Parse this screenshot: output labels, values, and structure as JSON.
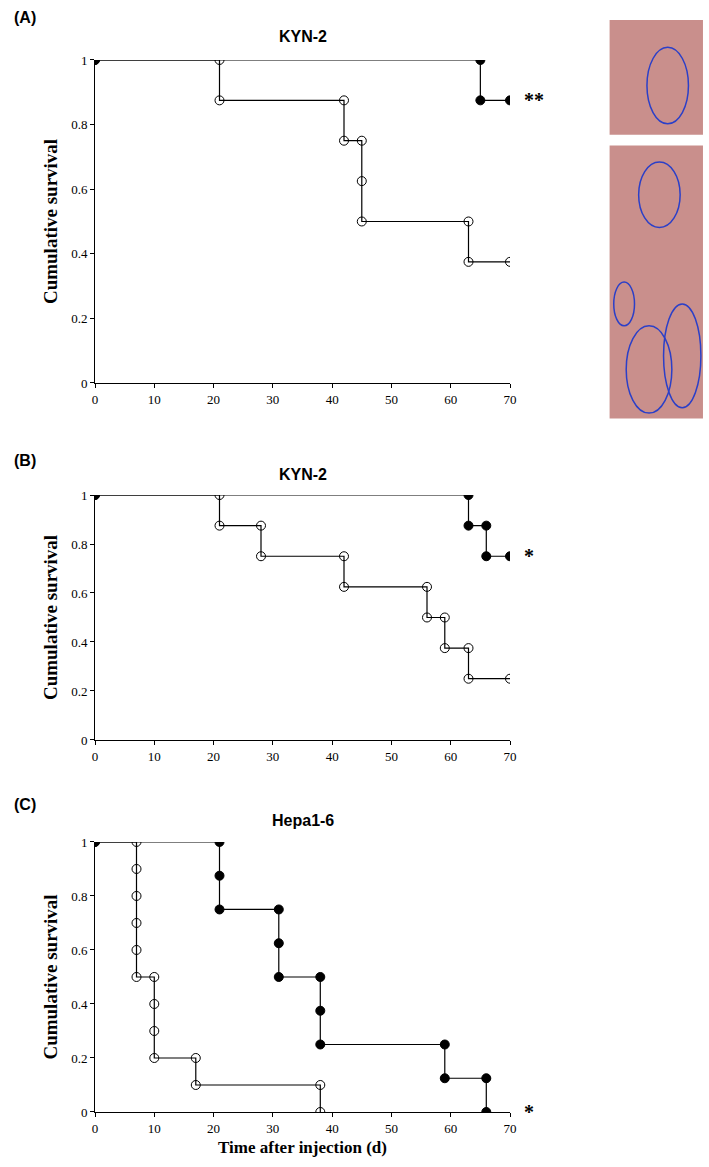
{
  "chart_data": [
    {
      "type": "line",
      "label": "(A)",
      "title": "KYN-2",
      "ylabel": "Cumulative survival",
      "xlim": [
        0,
        70
      ],
      "xticks": [
        0,
        10,
        20,
        30,
        40,
        50,
        60,
        70
      ],
      "ylim": [
        0,
        1
      ],
      "yticks": [
        0,
        0.2,
        0.4,
        0.6,
        0.8,
        1
      ],
      "annotation": "**",
      "series": [
        {
          "marker": "filled",
          "color": "#000000",
          "x": [
            0,
            65,
            65,
            70
          ],
          "values": [
            1,
            1,
            0.875,
            0.875
          ]
        },
        {
          "marker": "open",
          "color": "#000000",
          "x": [
            0,
            21,
            21,
            42,
            42,
            45,
            45,
            45,
            63,
            63,
            70
          ],
          "values": [
            1,
            1,
            0.875,
            0.875,
            0.75,
            0.75,
            0.625,
            0.5,
            0.5,
            0.375,
            0.375
          ]
        }
      ]
    },
    {
      "type": "line",
      "label": "(B)",
      "title": "KYN-2",
      "ylabel": "Cumulative survival",
      "xlim": [
        0,
        70
      ],
      "xticks": [
        0,
        10,
        20,
        30,
        40,
        50,
        60,
        70
      ],
      "ylim": [
        0,
        1
      ],
      "yticks": [
        0,
        0.2,
        0.4,
        0.6,
        0.8,
        1
      ],
      "annotation": "*",
      "series": [
        {
          "marker": "filled",
          "color": "#000000",
          "x": [
            0,
            63,
            63,
            66,
            66,
            70
          ],
          "values": [
            1,
            1,
            0.875,
            0.875,
            0.75,
            0.75
          ]
        },
        {
          "marker": "open",
          "color": "#000000",
          "x": [
            0,
            21,
            21,
            28,
            28,
            42,
            42,
            56,
            56,
            59,
            59,
            63,
            63,
            70
          ],
          "values": [
            1,
            1,
            0.875,
            0.875,
            0.75,
            0.75,
            0.625,
            0.625,
            0.5,
            0.5,
            0.375,
            0.375,
            0.25,
            0.25
          ]
        }
      ]
    },
    {
      "type": "line",
      "label": "(C)",
      "title": "Hepa1-6",
      "ylabel": "Cumulative survival",
      "xlabel": "Time after injection (d)",
      "xlim": [
        0,
        70
      ],
      "xticks": [
        0,
        10,
        20,
        30,
        40,
        50,
        60,
        70
      ],
      "ylim": [
        0,
        1
      ],
      "yticks": [
        0,
        0.2,
        0.4,
        0.6,
        0.8,
        1
      ],
      "annotation": "*",
      "series": [
        {
          "marker": "filled",
          "color": "#000000",
          "x": [
            0,
            21,
            21,
            21,
            31,
            31,
            31,
            38,
            38,
            38,
            59,
            59,
            66,
            66
          ],
          "values": [
            1,
            1,
            0.875,
            0.75,
            0.75,
            0.625,
            0.5,
            0.5,
            0.375,
            0.25,
            0.25,
            0.125,
            0.125,
            0
          ]
        },
        {
          "marker": "open",
          "color": "#000000",
          "x": [
            0,
            7,
            7,
            7,
            7,
            7,
            7,
            10,
            10,
            10,
            10,
            17,
            17,
            38,
            38
          ],
          "values": [
            1,
            1,
            0.9,
            0.8,
            0.7,
            0.6,
            0.5,
            0.5,
            0.4,
            0.3,
            0.2,
            0.2,
            0.1,
            0.1,
            0
          ]
        }
      ]
    }
  ]
}
